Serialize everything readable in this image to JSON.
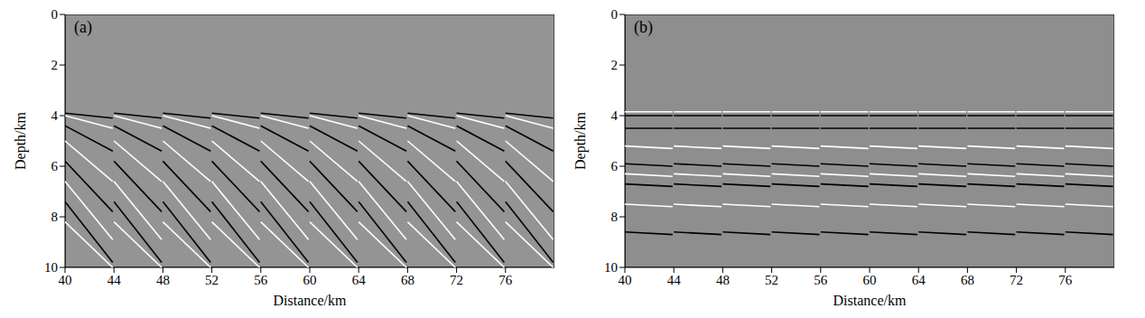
{
  "chart_data": [
    {
      "type": "line",
      "title": "(a)",
      "x_label": "Distance/km",
      "y_label": "Depth/km",
      "xlim": [
        40,
        80
      ],
      "xticks": [
        40,
        44,
        48,
        52,
        56,
        60,
        64,
        68,
        72,
        76
      ],
      "ylim": [
        0,
        10
      ],
      "yticks": [
        0,
        2,
        4,
        6,
        8,
        10
      ],
      "color": "#949494",
      "gather_starts": [
        40,
        44,
        48,
        52,
        56,
        60,
        64,
        68,
        72,
        76
      ],
      "gather_width": 3.9,
      "events": [
        {
          "color": "#000000",
          "depths": [
            3.9,
            4.1
          ]
        },
        {
          "color": "#ffffff",
          "depths": [
            4.0,
            4.5
          ]
        },
        {
          "color": "#000000",
          "depths": [
            4.4,
            5.4
          ]
        },
        {
          "color": "#ffffff",
          "depths": [
            5.0,
            6.6
          ]
        },
        {
          "color": "#000000",
          "depths": [
            5.8,
            7.8
          ]
        },
        {
          "color": "#ffffff",
          "depths": [
            6.6,
            8.9
          ]
        },
        {
          "color": "#000000",
          "depths": [
            7.4,
            9.8
          ]
        },
        {
          "color": "#ffffff",
          "depths": [
            8.2,
            10
          ]
        }
      ]
    },
    {
      "type": "line",
      "title": "(b)",
      "x_label": "Distance/km",
      "y_label": "Depth/km",
      "xlim": [
        40,
        80
      ],
      "xticks": [
        40,
        44,
        48,
        52,
        56,
        60,
        64,
        68,
        72,
        76
      ],
      "ylim": [
        0,
        10
      ],
      "yticks": [
        0,
        2,
        4,
        6,
        8,
        10
      ],
      "color": "#8e8e8e",
      "gather_starts": [
        40,
        44,
        48,
        52,
        56,
        60,
        64,
        68,
        72,
        76
      ],
      "gather_width": 3.9,
      "events": [
        {
          "color": "#ffffff",
          "depths": [
            3.85,
            3.85
          ]
        },
        {
          "color": "#000000",
          "depths": [
            4.0,
            4.0
          ]
        },
        {
          "color": "#000000",
          "depths": [
            4.5,
            4.5
          ]
        },
        {
          "color": "#ffffff",
          "depths": [
            5.2,
            5.3
          ]
        },
        {
          "color": "#000000",
          "depths": [
            5.9,
            6.0
          ]
        },
        {
          "color": "#ffffff",
          "depths": [
            6.3,
            6.4
          ]
        },
        {
          "color": "#000000",
          "depths": [
            6.7,
            6.8
          ]
        },
        {
          "color": "#ffffff",
          "depths": [
            7.5,
            7.6
          ]
        },
        {
          "color": "#000000",
          "depths": [
            8.6,
            8.7
          ]
        }
      ]
    }
  ]
}
